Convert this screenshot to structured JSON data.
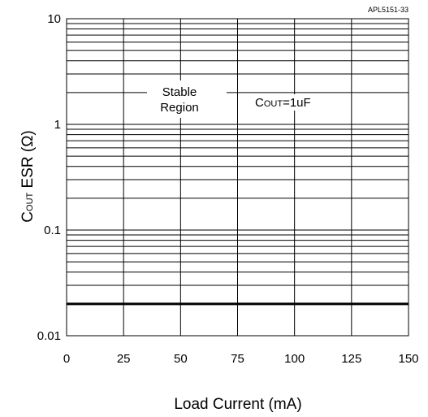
{
  "chart_data": {
    "type": "line",
    "figure_code": "APL5151-33",
    "xlabel": "Load Current (mA)",
    "ylabel": {
      "main": "C",
      "sub": "OUT",
      "rest": " ESR (Ω)"
    },
    "xlim": [
      0,
      150
    ],
    "ylim": [
      0.01,
      10
    ],
    "y_scale": "log",
    "grid": true,
    "x_ticks": [
      0,
      25,
      50,
      75,
      100,
      125,
      150
    ],
    "x_tick_labels": [
      "0",
      "25",
      "50",
      "75",
      "100",
      "125",
      "150"
    ],
    "y_ticks": [
      0.01,
      0.1,
      1,
      10
    ],
    "y_tick_labels": [
      "0.01",
      "0.1",
      "1",
      "10"
    ],
    "series": [
      {
        "x": [
          0,
          150
        ],
        "y": [
          0.02,
          0.02
        ]
      }
    ],
    "annotations": {
      "region_line1": "Stable",
      "region_line2": "Region",
      "condition": {
        "main": "C",
        "sub": "OUT",
        "rest": "=1uF"
      }
    }
  }
}
